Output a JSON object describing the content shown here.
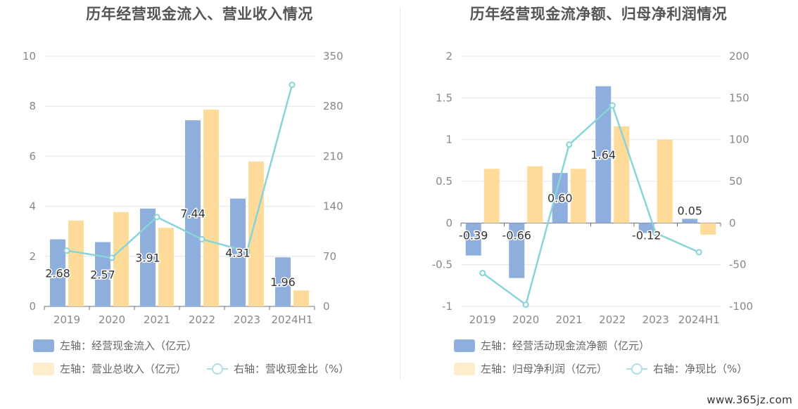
{
  "charts": {
    "left": {
      "title": "历年经营现金流入、营业收入情况",
      "legend": {
        "bar1": "左轴：经营现金流入（亿元）",
        "bar2": "左轴：营业总收入（亿元）",
        "line": "右轴：营收现金比（%）"
      }
    },
    "right": {
      "title": "历年经营现金流净额、归母净利润情况",
      "legend": {
        "bar1": "左轴：经营活动现金流净额（亿元）",
        "bar2": "左轴：归母净利润（亿元）",
        "line": "右轴：净现比（%）"
      }
    }
  },
  "watermark": "www.365jz.com",
  "colors": {
    "bar1": "#8eaedd",
    "bar2": "#ffdb99",
    "line": "#88d4d8",
    "grid": "#e6e6ee",
    "axis_text": "#888888",
    "label": "#333333"
  },
  "chart_data": [
    {
      "type": "bar",
      "categories": [
        "2019",
        "2020",
        "2021",
        "2022",
        "2023",
        "2024H1"
      ],
      "series": [
        {
          "name": "左轴：经营现金流入（亿元）",
          "axis": "left",
          "values": [
            2.68,
            2.57,
            3.91,
            7.44,
            4.31,
            1.96
          ],
          "labels": [
            "2.68",
            "2.57",
            "3.91",
            "7.44",
            "4.31",
            "1.96"
          ]
        },
        {
          "name": "左轴：营业总收入（亿元）",
          "axis": "left",
          "values": [
            3.43,
            3.77,
            3.14,
            7.87,
            5.79,
            0.64
          ]
        },
        {
          "name": "右轴：营收现金比（%）",
          "axis": "right",
          "type": "line",
          "values": [
            78,
            68,
            125,
            94,
            77,
            310
          ]
        }
      ],
      "ylim_left": [
        0,
        10
      ],
      "ylim_right": [
        0,
        350
      ],
      "yticks_left": [
        "0",
        "2",
        "4",
        "6",
        "8",
        "10"
      ],
      "yticks_right": [
        "0",
        "70",
        "140",
        "210",
        "280",
        "350"
      ],
      "grid": true,
      "legend_position": "bottom"
    },
    {
      "type": "bar",
      "categories": [
        "2019",
        "2020",
        "2021",
        "2022",
        "2023",
        "2024H1"
      ],
      "series": [
        {
          "name": "左轴：经营活动现金流净额（亿元）",
          "axis": "left",
          "values": [
            -0.39,
            -0.66,
            0.6,
            1.64,
            -0.12,
            0.05
          ],
          "labels": [
            "-0.39",
            "-0.66",
            "0.60",
            "1.64",
            "-0.12",
            "0.05"
          ]
        },
        {
          "name": "左轴：归母净利润（亿元）",
          "axis": "left",
          "values": [
            0.65,
            0.68,
            0.65,
            1.16,
            1.0,
            -0.14
          ]
        },
        {
          "name": "右轴：净现比（%）",
          "axis": "right",
          "type": "line",
          "values": [
            -60,
            -98,
            94,
            141,
            -12,
            -35
          ]
        }
      ],
      "ylim_left": [
        -1,
        2
      ],
      "ylim_right": [
        -100,
        200
      ],
      "yticks_left": [
        "-1",
        "-0.5",
        "0",
        "0.5",
        "1",
        "1.5",
        "2"
      ],
      "yticks_right": [
        "-100",
        "-50",
        "0",
        "50",
        "100",
        "150",
        "200"
      ],
      "grid": true,
      "legend_position": "bottom"
    }
  ]
}
